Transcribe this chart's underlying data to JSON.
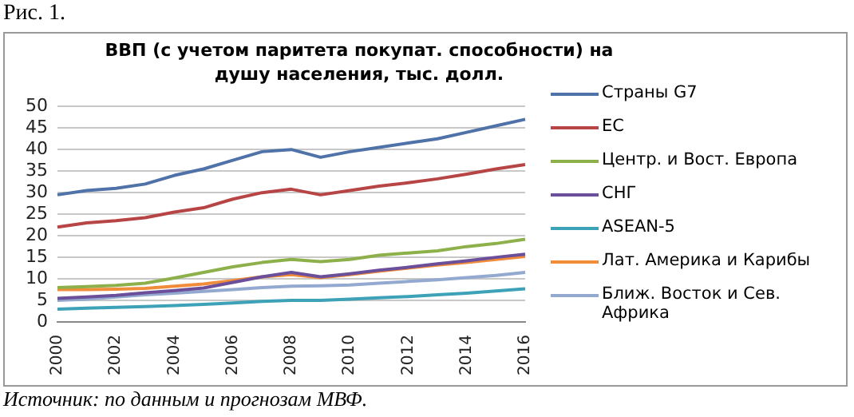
{
  "chart_data": {
    "type": "line",
    "title": "ВВП (с учетом паритета покупат. способности) на душу населения, тыс. долл.",
    "annotations": [
      "Рис. 1.",
      "Источник: по данным и прогнозам МВФ."
    ],
    "categories": [
      "2000",
      null,
      "2002",
      null,
      "2004",
      null,
      "2006",
      null,
      "2008",
      null,
      "2010",
      null,
      "2012",
      null,
      "2014",
      null,
      "2016"
    ],
    "series": [
      {
        "name": "Страны G7",
        "color": "#4f72a8",
        "values": [
          29.5,
          30.5,
          31,
          32,
          34,
          35.5,
          37.5,
          39.5,
          40,
          38.2,
          39.5,
          40.5,
          41.5,
          42.5,
          44,
          45.5,
          47
        ]
      },
      {
        "name": "ЕС",
        "color": "#b84545",
        "values": [
          22,
          23,
          23.5,
          24.2,
          25.5,
          26.5,
          28.5,
          30,
          30.8,
          29.5,
          30.5,
          31.5,
          32.3,
          33.2,
          34.3,
          35.5,
          36.5
        ]
      },
      {
        "name": "Центр. и Вост. Европа",
        "color": "#8db04a",
        "values": [
          8,
          8.2,
          8.5,
          9,
          10.2,
          11.5,
          12.8,
          13.8,
          14.5,
          14,
          14.5,
          15.5,
          16,
          16.5,
          17.5,
          18.2,
          19.2
        ]
      },
      {
        "name": "СНГ",
        "color": "#6b4f9a",
        "values": [
          5.5,
          5.8,
          6.2,
          6.8,
          7.3,
          7.9,
          9.2,
          10.5,
          11.5,
          10.5,
          11.2,
          12,
          12.7,
          13.5,
          14.2,
          15,
          15.7
        ]
      },
      {
        "name": "ASEAN-5",
        "color": "#3da2b8",
        "values": [
          3,
          3.2,
          3.4,
          3.6,
          3.8,
          4.1,
          4.4,
          4.8,
          5,
          5,
          5.3,
          5.6,
          5.9,
          6.3,
          6.7,
          7.2,
          7.7
        ]
      },
      {
        "name": "Лат. Америка и Карибы",
        "color": "#f08c3a",
        "values": [
          7.5,
          7.5,
          7.6,
          7.8,
          8.3,
          8.8,
          9.6,
          10.5,
          11,
          10.3,
          11,
          11.8,
          12.5,
          13.2,
          13.8,
          14.5,
          15.2
        ]
      },
      {
        "name": "Ближ. Восток и Сев. Африка",
        "color": "#93a9d0",
        "values": [
          5,
          5.3,
          5.8,
          6.3,
          6.7,
          7.1,
          7.5,
          8,
          8.3,
          8.4,
          8.6,
          9,
          9.4,
          9.8,
          10.3,
          10.8,
          11.5
        ]
      }
    ],
    "ylim": [
      0,
      50
    ],
    "yticks": [
      0,
      5,
      10,
      15,
      20,
      25,
      30,
      35,
      40,
      45,
      50
    ],
    "grid": "y",
    "legend": "right",
    "marker": "none",
    "line_style": "solid"
  }
}
